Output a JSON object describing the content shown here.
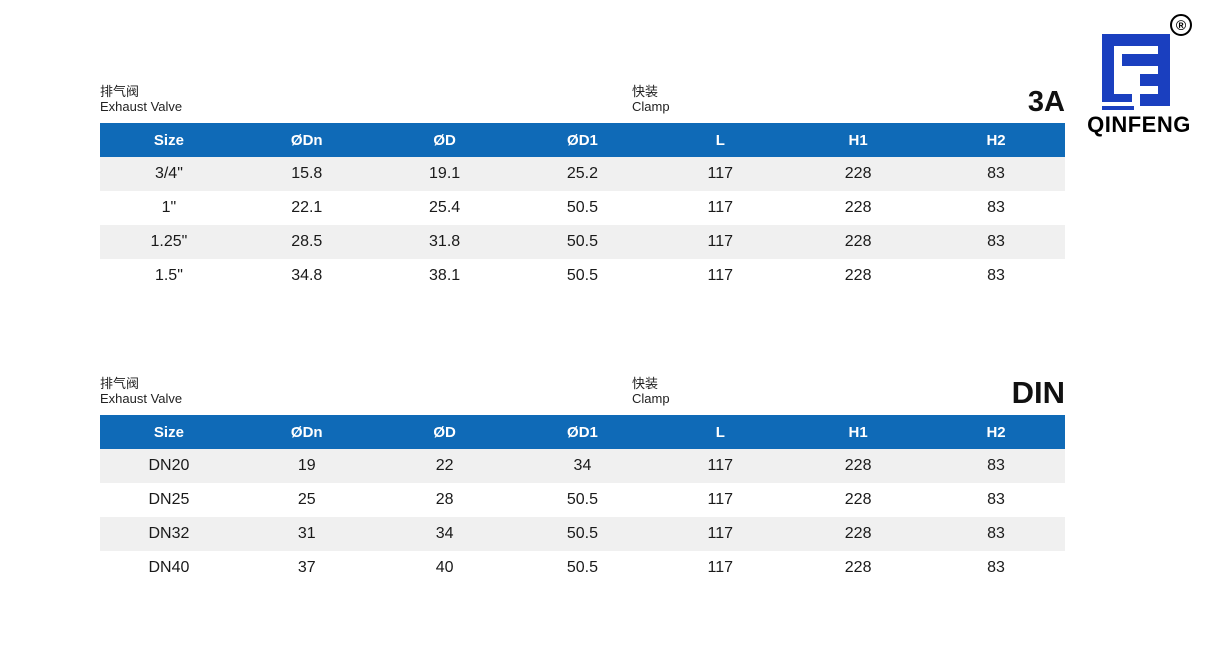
{
  "logo": {
    "brand": "QINFENG",
    "registered": "®",
    "color": "#1a3fbf"
  },
  "header_color": "#0f6ab7",
  "tables": [
    {
      "name_cn": "排气阀",
      "name_en": "Exhaust Valve",
      "connection_cn": "快装",
      "connection_en": "Clamp",
      "standard": "3A",
      "columns": [
        "Size",
        "ØDn",
        "ØD",
        "ØD1",
        "L",
        "H1",
        "H2"
      ],
      "rows": [
        [
          "3/4\"",
          "15.8",
          "19.1",
          "25.2",
          "117",
          "228",
          "83"
        ],
        [
          "1\"",
          "22.1",
          "25.4",
          "50.5",
          "117",
          "228",
          "83"
        ],
        [
          "1.25\"",
          "28.5",
          "31.8",
          "50.5",
          "117",
          "228",
          "83"
        ],
        [
          "1.5\"",
          "34.8",
          "38.1",
          "50.5",
          "117",
          "228",
          "83"
        ]
      ]
    },
    {
      "name_cn": "排气阀",
      "name_en": "Exhaust Valve",
      "connection_cn": "快装",
      "connection_en": "Clamp",
      "standard": "DIN",
      "columns": [
        "Size",
        "ØDn",
        "ØD",
        "ØD1",
        "L",
        "H1",
        "H2"
      ],
      "rows": [
        [
          "DN20",
          "19",
          "22",
          "34",
          "117",
          "228",
          "83"
        ],
        [
          "DN25",
          "25",
          "28",
          "50.5",
          "117",
          "228",
          "83"
        ],
        [
          "DN32",
          "31",
          "34",
          "50.5",
          "117",
          "228",
          "83"
        ],
        [
          "DN40",
          "37",
          "40",
          "50.5",
          "117",
          "228",
          "83"
        ]
      ]
    }
  ]
}
